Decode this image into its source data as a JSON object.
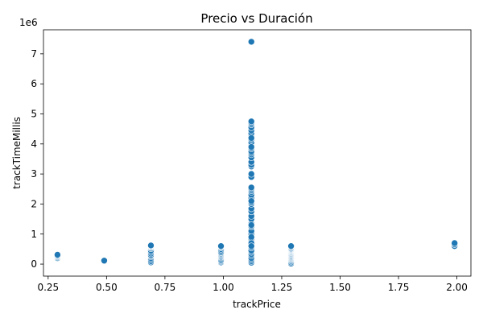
{
  "chart_data": {
    "type": "scatter",
    "title": "Precio vs Duración",
    "xlabel": "trackPrice",
    "ylabel": "trackTimeMillis",
    "y_offset_label": "1e6",
    "xlim": [
      0.23,
      2.06
    ],
    "ylim": [
      -400000,
      7800000
    ],
    "x_ticks": [
      0.25,
      0.5,
      0.75,
      1.0,
      1.25,
      1.5,
      1.75,
      2.0
    ],
    "x_tick_labels": [
      "0.25",
      "0.50",
      "0.75",
      "1.00",
      "1.25",
      "1.50",
      "1.75",
      "2.00"
    ],
    "y_ticks": [
      0,
      1000000,
      2000000,
      3000000,
      4000000,
      5000000,
      6000000,
      7000000
    ],
    "y_tick_labels": [
      "0",
      "1",
      "2",
      "3",
      "4",
      "5",
      "6",
      "7"
    ],
    "grid": false,
    "legend": "none",
    "color": "#1f77b4",
    "series": [
      {
        "x": [
          0.29,
          0.29,
          0.29,
          0.29,
          0.29,
          0.29,
          0.49,
          0.49,
          0.49,
          0.69,
          0.69,
          0.69,
          0.69,
          0.69,
          0.69,
          0.69,
          0.69,
          0.69,
          0.69,
          0.69,
          0.69,
          0.69,
          0.69,
          0.69,
          0.99,
          0.99,
          0.99,
          0.99,
          0.99,
          0.99,
          0.99,
          0.99,
          0.99,
          0.99,
          0.99,
          0.99,
          0.99,
          0.99,
          0.99,
          0.99,
          0.99,
          0.99,
          1.12,
          1.12,
          1.12,
          1.12,
          1.12,
          1.12,
          1.12,
          1.12,
          1.12,
          1.12,
          1.12,
          1.12,
          1.12,
          1.12,
          1.12,
          1.12,
          1.12,
          1.12,
          1.12,
          1.12,
          1.12,
          1.12,
          1.12,
          1.12,
          1.12,
          1.12,
          1.12,
          1.12,
          1.12,
          1.12,
          1.12,
          1.12,
          1.12,
          1.12,
          1.12,
          1.12,
          1.12,
          1.12,
          1.12,
          1.12,
          1.12,
          1.12,
          1.12,
          1.12,
          1.12,
          1.12,
          1.12,
          1.12,
          1.12,
          1.12,
          1.12,
          1.12,
          1.12,
          1.12,
          1.12,
          1.12,
          1.12,
          1.29,
          1.29,
          1.29,
          1.29,
          1.29,
          1.29,
          1.29,
          1.29,
          1.29,
          1.29,
          1.29,
          1.29,
          1.29,
          1.29,
          1.29,
          1.29,
          1.29,
          1.29,
          1.29,
          1.29,
          1.29,
          1.29,
          1.29,
          1.29,
          1.29,
          1.29,
          1.99,
          1.99,
          1.99
        ],
        "y": [
          200000,
          230000,
          250000,
          270000,
          290000,
          310000,
          90000,
          100000,
          115000,
          60000,
          100000,
          150000,
          200000,
          250000,
          280000,
          300000,
          350000,
          400000,
          450000,
          520000,
          560000,
          580000,
          600000,
          620000,
          60000,
          90000,
          120000,
          150000,
          200000,
          230000,
          250000,
          280000,
          300000,
          330000,
          350000,
          380000,
          400000,
          450000,
          500000,
          550000,
          580000,
          600000,
          50000,
          100000,
          150000,
          200000,
          280000,
          330000,
          400000,
          450000,
          550000,
          680000,
          800000,
          850000,
          1000000,
          1100000,
          1250000,
          1350000,
          1500000,
          1600000,
          1750000,
          1850000,
          2000000,
          2050000,
          2200000,
          2300000,
          2400000,
          2450000,
          2500000,
          2550000,
          2900000,
          3250000,
          3300000,
          3400000,
          3550000,
          3650000,
          3700000,
          3750000,
          3850000,
          3950000,
          4050000,
          4150000,
          4250000,
          4300000,
          4350000,
          4450000,
          4550000,
          4650000,
          4700000,
          4750000,
          7400000,
          2100000,
          3000000,
          3900000,
          4200000,
          1300000,
          900000,
          700000,
          600000,
          20000,
          60000,
          100000,
          130000,
          160000,
          180000,
          200000,
          220000,
          240000,
          260000,
          280000,
          300000,
          320000,
          340000,
          360000,
          380000,
          400000,
          420000,
          440000,
          460000,
          480000,
          500000,
          520000,
          550000,
          580000,
          600000,
          600000,
          660000,
          700000
        ]
      }
    ]
  }
}
